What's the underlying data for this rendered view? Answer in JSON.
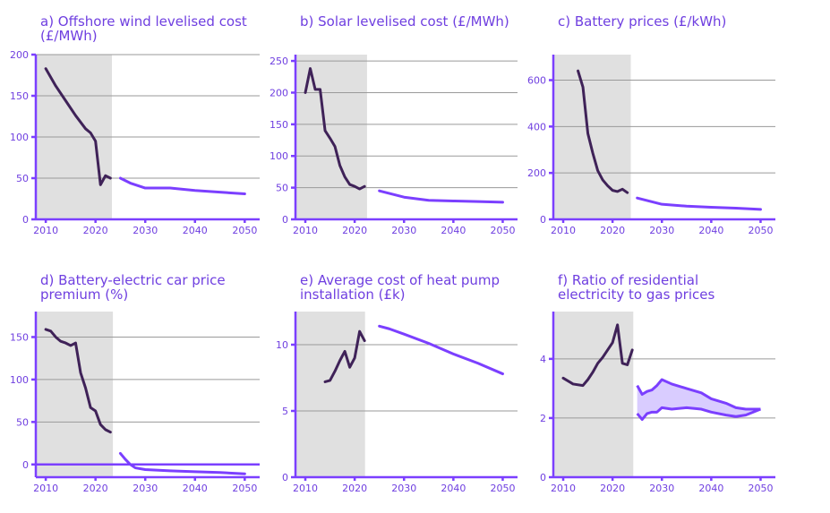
{
  "colors": {
    "historical": "#3f2258",
    "projection": "#7b3fff",
    "band_fill": "#d9ccff",
    "axis": "#7b3fff",
    "title": "#6f3fe0",
    "shade": "#e0e0e0"
  },
  "chart_data": [
    {
      "type": "line",
      "title_lines": [
        "a) Offshore wind levelised cost",
        "(£/MWh)"
      ],
      "xlim": [
        2008,
        2053
      ],
      "ylim": [
        0,
        200
      ],
      "xticks": [
        2010,
        2020,
        2030,
        2040,
        2050
      ],
      "yticks": [
        0,
        50,
        100,
        150,
        200
      ],
      "historical_shading": [
        2008,
        2023.3
      ],
      "grid": true,
      "series": [
        {
          "kind": "historical",
          "x": [
            2010,
            2012,
            2014,
            2016,
            2018,
            2019,
            2020,
            2021,
            2022,
            2023
          ],
          "y": [
            183,
            162,
            144,
            126,
            110,
            105,
            95,
            42,
            53,
            50
          ]
        },
        {
          "kind": "projection",
          "x": [
            2025,
            2027,
            2030,
            2035,
            2040,
            2045,
            2050
          ],
          "y": [
            50,
            44,
            38,
            38,
            35,
            33,
            31
          ]
        }
      ]
    },
    {
      "type": "line",
      "title_lines": [
        "b) Solar levelised cost (£/MWh)"
      ],
      "xlim": [
        2008,
        2053
      ],
      "ylim": [
        0,
        260
      ],
      "xticks": [
        2010,
        2020,
        2030,
        2040,
        2050
      ],
      "yticks": [
        0,
        50,
        100,
        150,
        200,
        250
      ],
      "historical_shading": [
        2008,
        2022.5
      ],
      "grid": true,
      "series": [
        {
          "kind": "historical",
          "x": [
            2010,
            2011,
            2012,
            2013,
            2014,
            2015,
            2016,
            2017,
            2018,
            2019,
            2020,
            2021,
            2022
          ],
          "y": [
            200,
            238,
            205,
            205,
            140,
            128,
            115,
            85,
            67,
            55,
            52,
            48,
            52
          ]
        },
        {
          "kind": "projection",
          "x": [
            2025,
            2030,
            2035,
            2040,
            2045,
            2050
          ],
          "y": [
            45,
            35,
            30,
            29,
            28,
            27
          ]
        }
      ]
    },
    {
      "type": "line",
      "title_lines": [
        "c) Battery prices (£/kWh)"
      ],
      "xlim": [
        2008,
        2053
      ],
      "ylim": [
        0,
        710
      ],
      "xticks": [
        2010,
        2020,
        2030,
        2040,
        2050
      ],
      "yticks": [
        0,
        200,
        400,
        600
      ],
      "historical_shading": [
        2008,
        2023.7
      ],
      "grid": true,
      "series": [
        {
          "kind": "historical",
          "x": [
            2013,
            2014,
            2015,
            2016,
            2017,
            2018,
            2019,
            2020,
            2021,
            2022,
            2023
          ],
          "y": [
            640,
            570,
            370,
            285,
            210,
            170,
            145,
            125,
            120,
            130,
            115
          ]
        },
        {
          "kind": "projection",
          "x": [
            2025,
            2030,
            2035,
            2040,
            2045,
            2050
          ],
          "y": [
            92,
            65,
            57,
            52,
            48,
            43
          ]
        }
      ]
    },
    {
      "type": "line",
      "title_lines": [
        "d) Battery-electric car price",
        "premium (%)"
      ],
      "xlim": [
        2008,
        2053
      ],
      "ylim": [
        -15,
        180
      ],
      "xticks": [
        2010,
        2020,
        2030,
        2040,
        2050
      ],
      "yticks": [
        0,
        50,
        100,
        150
      ],
      "historical_shading": [
        2008,
        2023.5
      ],
      "grid": true,
      "zero_line": true,
      "series": [
        {
          "kind": "historical",
          "x": [
            2010,
            2011,
            2012,
            2013,
            2014,
            2015,
            2016,
            2017,
            2018,
            2019,
            2020,
            2021,
            2022,
            2023
          ],
          "y": [
            159,
            157,
            150,
            145,
            143,
            140,
            143,
            108,
            90,
            67,
            63,
            47,
            41,
            38
          ]
        },
        {
          "kind": "projection",
          "x": [
            2025,
            2026,
            2027,
            2028,
            2030,
            2035,
            2040,
            2045,
            2050
          ],
          "y": [
            13,
            6,
            0,
            -4,
            -6,
            -7.5,
            -8.5,
            -9.5,
            -11
          ]
        }
      ]
    },
    {
      "type": "line",
      "title_lines": [
        "e) Average cost of heat pump",
        "installation (£k)"
      ],
      "xlim": [
        2008,
        2053
      ],
      "ylim": [
        0,
        12.5
      ],
      "xticks": [
        2010,
        2020,
        2030,
        2040,
        2050
      ],
      "yticks": [
        0,
        5,
        10
      ],
      "historical_shading": [
        2008,
        2022.1
      ],
      "grid": true,
      "series": [
        {
          "kind": "historical",
          "x": [
            2014,
            2015,
            2016,
            2017,
            2018,
            2019,
            2020,
            2021,
            2022
          ],
          "y": [
            7.2,
            7.3,
            8.0,
            8.8,
            9.5,
            8.3,
            9.0,
            11.0,
            10.3
          ]
        },
        {
          "kind": "projection",
          "x": [
            2025,
            2027,
            2030,
            2035,
            2040,
            2045,
            2050
          ],
          "y": [
            11.4,
            11.2,
            10.8,
            10.1,
            9.3,
            8.6,
            7.8
          ]
        }
      ]
    },
    {
      "type": "area",
      "title_lines": [
        "f) Ratio of residential",
        "electricity to gas prices"
      ],
      "xlim": [
        2008,
        2053
      ],
      "ylim": [
        0,
        5.6
      ],
      "xticks": [
        2010,
        2020,
        2030,
        2040,
        2050
      ],
      "yticks": [
        0,
        2,
        4
      ],
      "historical_shading": [
        2008,
        2024.2
      ],
      "grid": true,
      "series": [
        {
          "kind": "historical",
          "x": [
            2010,
            2012,
            2014,
            2015,
            2016,
            2017,
            2018,
            2019,
            2020,
            2021,
            2022,
            2023,
            2024
          ],
          "y": [
            3.35,
            3.15,
            3.1,
            3.3,
            3.55,
            3.85,
            4.05,
            4.3,
            4.55,
            5.15,
            3.85,
            3.8,
            4.3
          ]
        },
        {
          "kind": "projection_band",
          "x": [
            2025,
            2026,
            2027,
            2028,
            2029,
            2030,
            2032,
            2035,
            2038,
            2040,
            2043,
            2045,
            2047,
            2050
          ],
          "upper": [
            3.1,
            2.8,
            2.9,
            2.95,
            3.1,
            3.3,
            3.15,
            3.0,
            2.85,
            2.65,
            2.5,
            2.35,
            2.3,
            2.3
          ],
          "lower": [
            2.15,
            1.95,
            2.15,
            2.2,
            2.2,
            2.35,
            2.3,
            2.35,
            2.3,
            2.2,
            2.1,
            2.05,
            2.1,
            2.3
          ]
        }
      ]
    }
  ]
}
